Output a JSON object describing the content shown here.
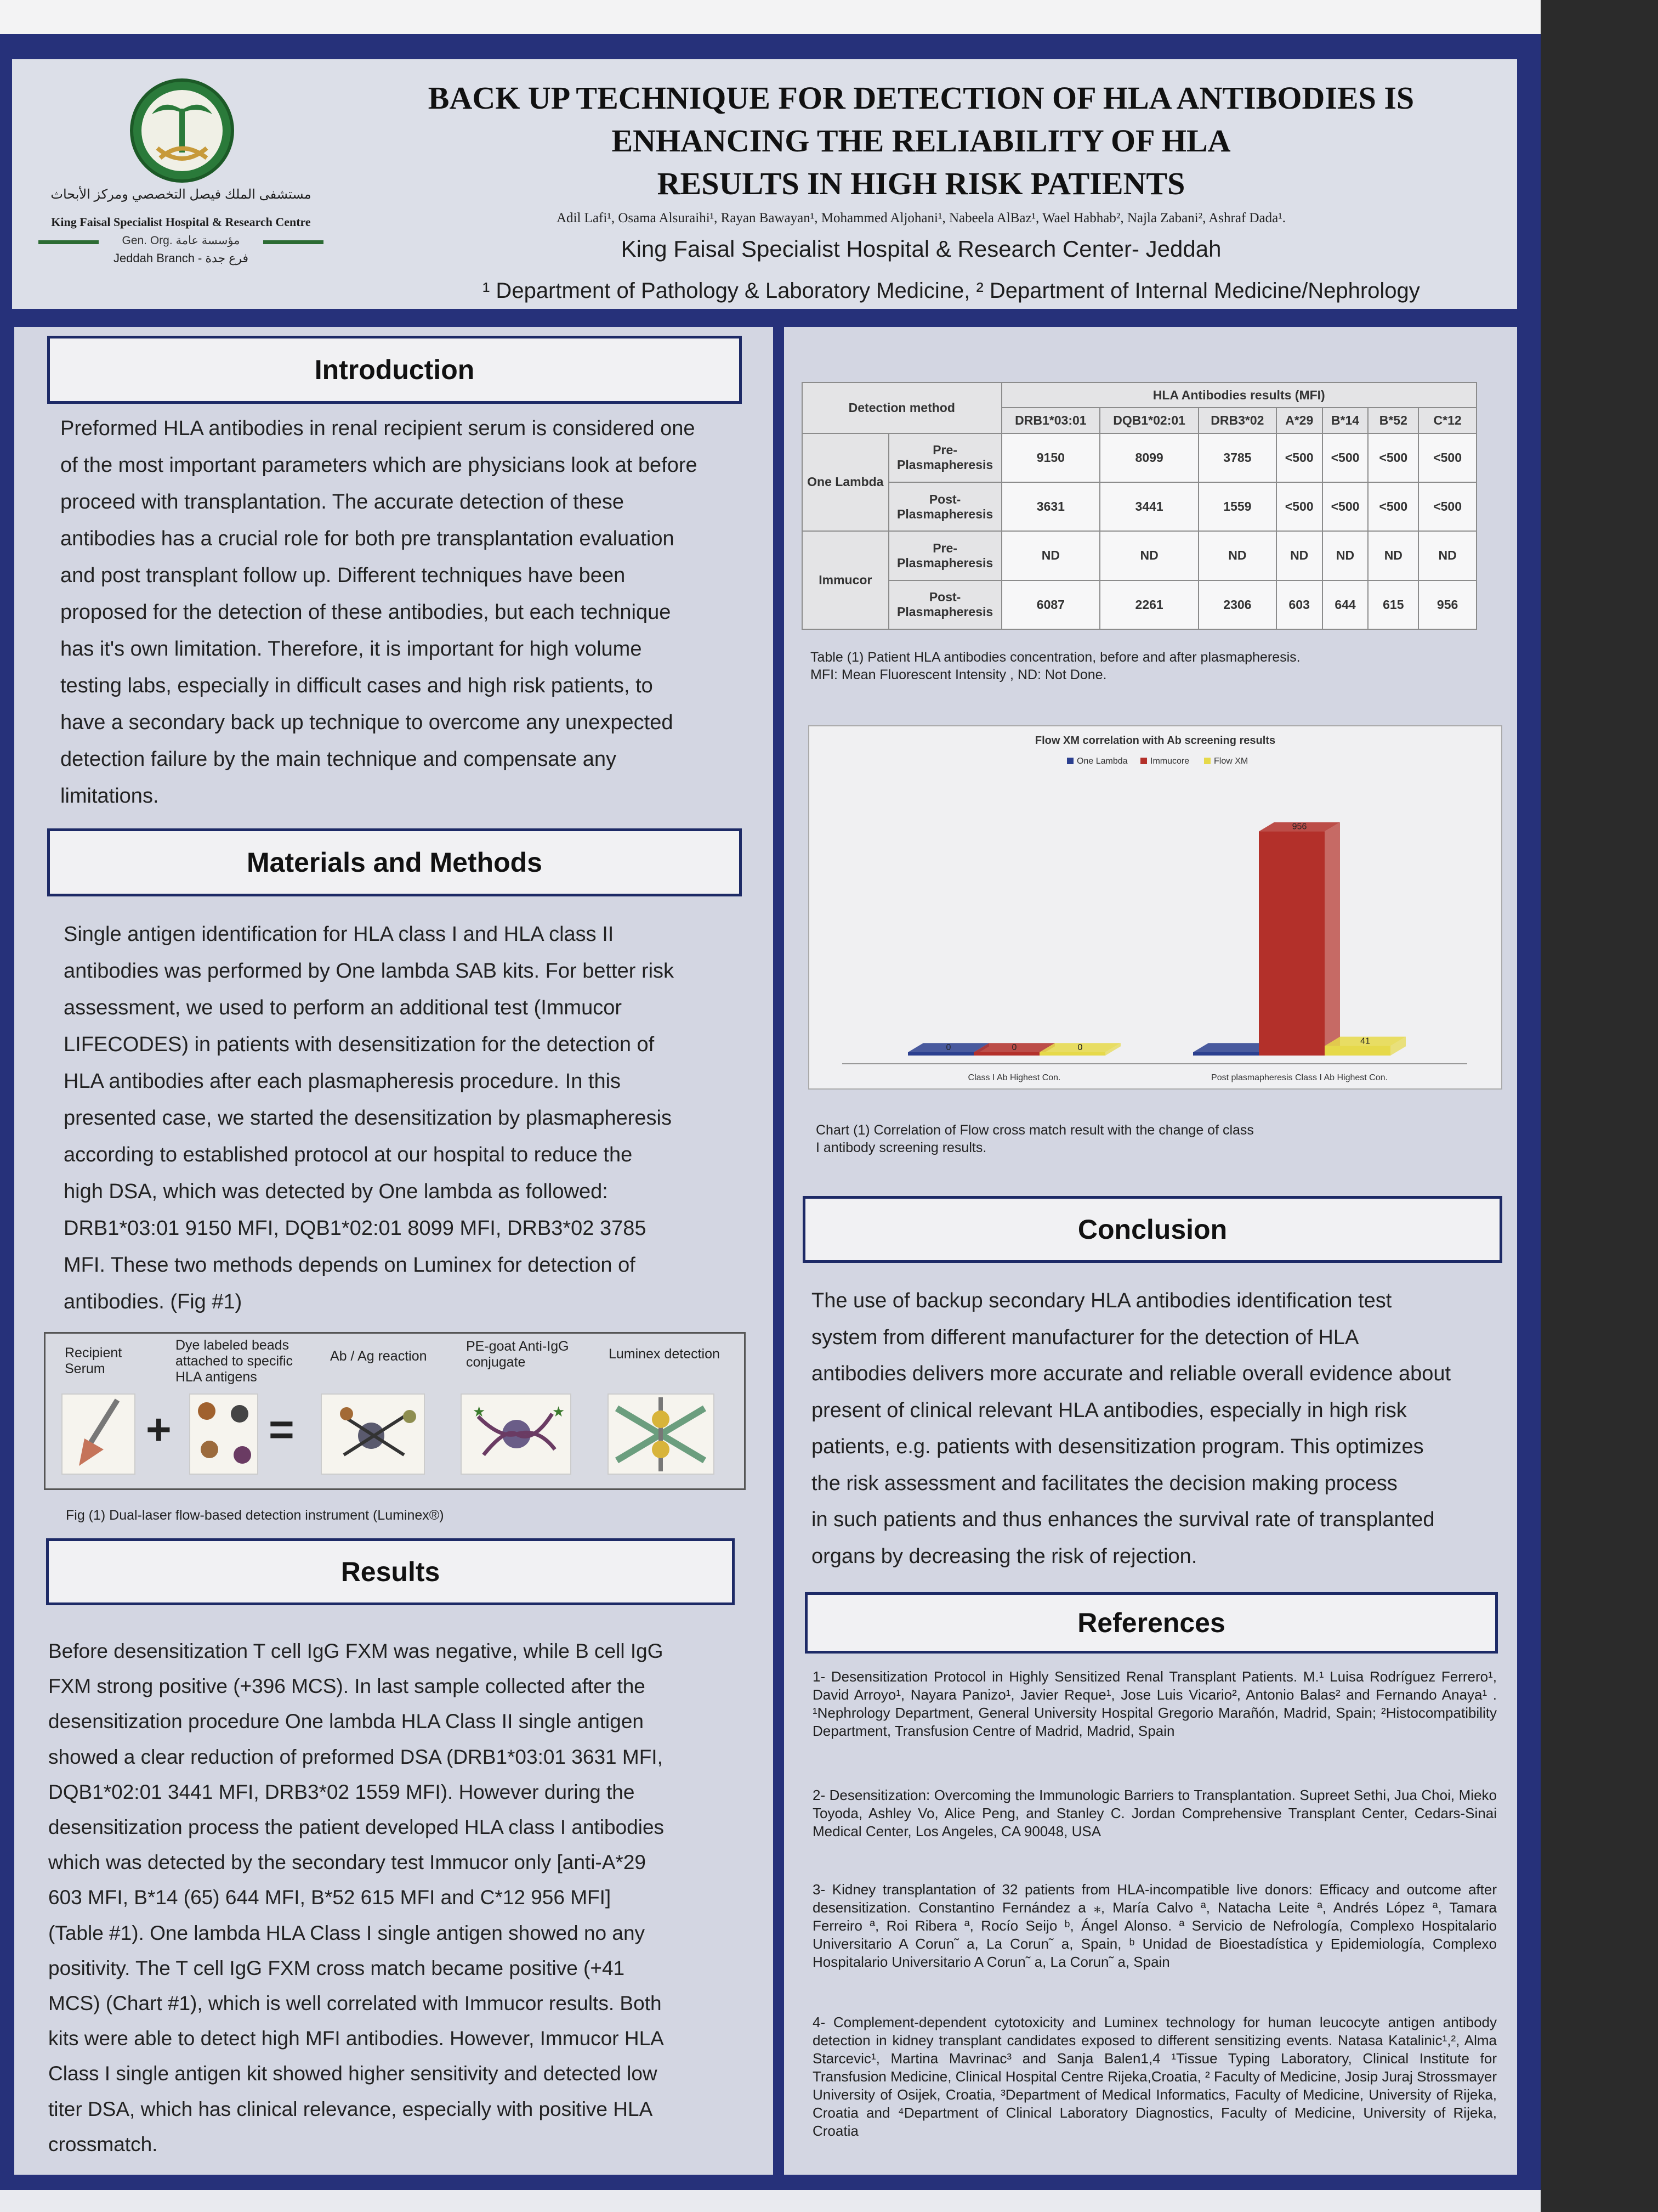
{
  "header": {
    "title_lines": [
      "BACK UP TECHNIQUE FOR DETECTION OF HLA ANTIBODIES IS",
      "ENHANCING THE RELIABILITY OF HLA",
      "RESULTS IN HIGH RISK PATIENTS"
    ],
    "authors": "Adil Lafi¹, Osama Alsuraihi¹, Rayan Bawayan¹, Mohammed Aljohani¹, Nabeela AlBaz¹, Wael Habhab², Najla Zabani², Ashraf Dada¹.",
    "institution": "King Faisal Specialist Hospital & Research Center- Jeddah",
    "departments": "¹ Department of Pathology & Laboratory Medicine, ² Department of Internal Medicine/Nephrology",
    "logo": {
      "arabic_name": "مستشفى الملك فيصل التخصصي ومركز الأبحاث",
      "english_name": "King Faisal Specialist Hospital & Research Centre",
      "org": "Gen. Org.  مؤسسة عامة",
      "branch": "Jeddah Branch - فرع جدة"
    }
  },
  "introduction": {
    "heading": "Introduction",
    "lines": [
      "Preformed HLA antibodies in renal recipient serum  is considered one",
      "of the most important parameters which are physicians look at before",
      "proceed  with  transplantation.  The  accurate  detection  of  these",
      "antibodies  has a crucial role for both pre transplantation evaluation",
      "and  post   transplant  follow  up.  Different  techniques  have  been",
      "proposed for the detection of these antibodies, but each technique",
      "has it's own limitation. Therefore,   it  is  important  for  high volume",
      "testing labs, especially in difficult cases and high risk patients, to",
      "have a secondary back up  technique  to overcome any unexpected",
      "detection  failure  by  the  main  technique  and  compensate  any",
      "limitations."
    ]
  },
  "methods": {
    "heading": "Materials and Methods",
    "lines": [
      "Single   antigen  identification  for  HLA  class  I  and   HLA  class  II",
      "antibodies was  performed by One lambda SAB kits.  For better risk",
      "assessment,   we   used  to   perform  an   additional  test  (Immucor",
      "LIFECODES)  in   patients  with desensitization  for   the   detection  of",
      "HLA  antibodies  after  each   plasmapheresis  procedure.  In  this",
      "presented case,  we  started the  desensitization by  plasmapheresis",
      "according  to   established  protocol  at   our   hospital  to   reduce  the",
      "high  DSA,  which  was    detected  by   One   lambda  as   followed:",
      "DRB1*03:01    9150    MFI, DQB1*02:01    8099   MFI, DRB3*02  3785",
      "MFI.  These  two  methods  depends  on  Luminex  for  detection  of",
      "antibodies. (Fig #1)"
    ]
  },
  "figure1": {
    "labels": [
      "Recipient Serum",
      "Dye labeled beads attached to specific HLA antigens",
      "Ab / Ag reaction",
      "PE-goat Anti-IgG conjugate",
      "Luminex detection"
    ],
    "operators": [
      "+",
      "="
    ],
    "caption": "Fig (1) Dual-laser flow-based detection instrument (Luminex®)"
  },
  "results": {
    "heading": "Results",
    "lines": [
      "Before desensitization T cell IgG FXM was negative, while B cell IgG",
      "FXM strong positive (+396 MCS). In last sample collected after the",
      "desensitization procedure One lambda HLA Class II single antigen",
      "showed a clear reduction of preformed DSA (DRB1*03:01 3631 MFI,",
      "DQB1*02:01  3441  MFI,  DRB3*02  1559  MFI).  However  during  the",
      "desensitization process the  patient developed HLA class  I antibodies",
      "which was detected by  the   secondary test Immucor only   [anti-A*29",
      "603    MFI,  B*14 (65) 644    MFI,  B*52 615    MFI and  C*12  956    MFI]",
      "(Table #1). One lambda HLA Class I single antigen showed no any",
      "positivity.  The  T  cell  IgG  FXM  cross  match  became  positive  (+41",
      "MCS) (Chart #1), which is well  correlated with Immucor results. Both",
      "kits  were able  to detect high  MFI antibodies. However, Immucor HLA",
      "Class  I  single  antigen  kit  showed  higher  sensitivity  and  detected  low",
      "titer  DSA,  which  has  clinical  relevance,  especially  with  positive  HLA",
      "crossmatch."
    ]
  },
  "table1": {
    "method_header": "Detection method",
    "results_header": "HLA Antibodies results (MFI)",
    "columns": [
      "DRB1*03:01",
      "DQB1*02:01",
      "DRB3*02",
      "A*29",
      "B*14",
      "B*52",
      "C*12"
    ],
    "groups": [
      {
        "name": "One Lambda",
        "rows": [
          {
            "label": "Pre-Plasmapheresis",
            "values": [
              "9150",
              "8099",
              "3785",
              "<500",
              "<500",
              "<500",
              "<500"
            ]
          },
          {
            "label": "Post-Plasmapheresis",
            "values": [
              "3631",
              "3441",
              "1559",
              "<500",
              "<500",
              "<500",
              "<500"
            ]
          }
        ]
      },
      {
        "name": "Immucor",
        "rows": [
          {
            "label": "Pre-Plasmapheresis",
            "values": [
              "ND",
              "ND",
              "ND",
              "ND",
              "ND",
              "ND",
              "ND"
            ]
          },
          {
            "label": "Post-Plasmapheresis",
            "values": [
              "6087",
              "2261",
              "2306",
              "603",
              "644",
              "615",
              "956"
            ]
          }
        ]
      }
    ],
    "caption_lines": [
      "Table (1) Patient HLA antibodies concentration, before and after plasmapheresis.",
      "MFI: Mean Fluorescent Intensity , ND: Not Done."
    ]
  },
  "chart_data": {
    "type": "bar",
    "title": "Flow XM correlation with Ab screening results",
    "categories": [
      "Class I Ab Highest Con.",
      "Post plasmapheresis Class I Ab Highest Con."
    ],
    "series": [
      {
        "name": "One Lambda",
        "values": [
          0,
          0
        ],
        "color": "#2b3f8f"
      },
      {
        "name": "Immucore",
        "values": [
          0,
          956
        ],
        "color": "#b3302a"
      },
      {
        "name": "Flow XM",
        "values": [
          0,
          41
        ],
        "color": "#e6d94a"
      }
    ],
    "data_labels": [
      [
        "0",
        "0",
        "0"
      ],
      [
        "",
        "956",
        "41"
      ]
    ],
    "legend_position": "top-center",
    "ylim": [
      0,
      1100
    ],
    "grid": false,
    "caption_lines": [
      "Chart (1)  Correlation of Flow cross match  result with the change of class",
      "I antibody screening results."
    ]
  },
  "conclusion": {
    "heading": "Conclusion",
    "lines": [
      "The  use   of  backup  secondary  HLA  antibodies  identification  test",
      "system  from    different  manufacturer  for  the    detection  of  HLA",
      "antibodies delivers more accurate and  reliable overall evidence about",
      "present  of  clinical  relevant  HLA  antibodies,  especially  in  high  risk",
      "patients,  e.g.  patients  with  desensitization  program.  This  optimizes",
      "the    risk  assessment  and    facilitates  the    decision  making  process",
      "in  such  patients  and  thus  enhances  the  survival  rate  of  transplanted",
      "organs by decreasing the risk of rejection."
    ]
  },
  "references": {
    "heading": "References",
    "items": [
      "1- Desensitization Protocol in Highly Sensitized Renal Transplant Patients. M.¹ Luisa Rodríguez Ferrero¹, David Arroyo¹, Nayara Panizo¹, Javier Reque¹, Jose Luis Vicario², Antonio Balas² and Fernando Anaya¹ . ¹Nephrology Department, General University Hospital Gregorio Marañón, Madrid, Spain; ²Histocompatibility Department, Transfusion Centre of Madrid, Madrid, Spain",
      "2- Desensitization: Overcoming the Immunologic Barriers to Transplantation. Supreet Sethi, Jua Choi, Mieko Toyoda, Ashley Vo, Alice Peng, and Stanley C. Jordan Comprehensive Transplant Center, Cedars-Sinai Medical Center, Los Angeles, CA 90048, USA",
      "3- Kidney transplantation of 32 patients from HLA-incompatible live donors:  Efficacy and outcome after desensitization. Constantino Fernández a ⁎, María  Calvo ª, Natacha Leite ª, Andrés López ª, Tamara Ferreiro ª, Roi Ribera ª, Rocío Seijo ᵇ, Ángel Alonso. ª Servicio de Nefrología,  Complexo  Hospitalario Universitario A Corun˜ a, La Corun˜ a, Spain, ᵇ Unidad de Bioestadística y Epidemiología, Complexo  Hospitalario Universitario A Corun˜ a, La Corun˜ a, Spain",
      "4- Complement-dependent cytotoxicity and Luminex technology for human leucocyte antigen antibody detection in kidney transplant candidates exposed to different sensitizing events. Natasa Katalinic¹,², Alma Starcevic¹, Martina Mavrinac³ and Sanja Balen1,4 ¹Tissue Typing Laboratory, Clinical Institute for Transfusion Medicine, Clinical Hospital Centre Rijeka,Croatia, ² Faculty of Medicine, Josip Juraj Strossmayer University of Osijek, Croatia, ³Department of Medical Informatics, Faculty of Medicine, University of Rijeka, Croatia and ⁴Department of Clinical Laboratory Diagnostics, Faculty of Medicine, University of Rijeka, Croatia"
    ]
  }
}
